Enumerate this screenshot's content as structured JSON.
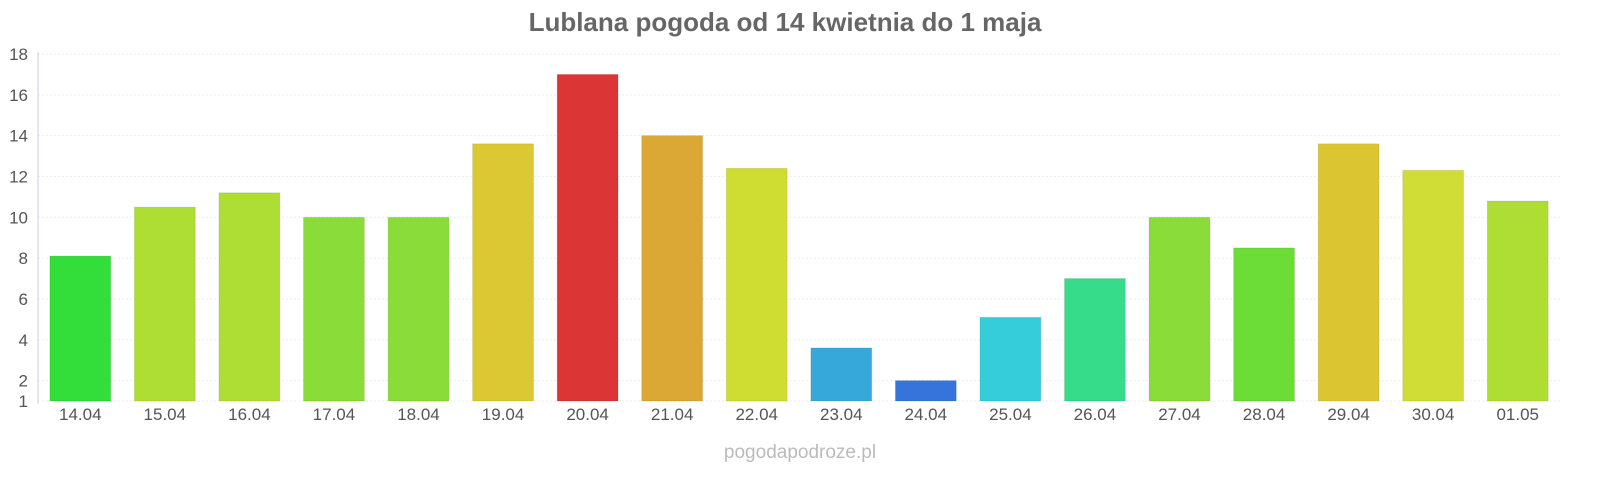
{
  "chart_data": {
    "type": "bar",
    "title": "Lublana pogoda od 14 kwietnia do 1 maja",
    "xlabel": "",
    "ylabel": "",
    "categories": [
      "14.04",
      "15.04",
      "16.04",
      "17.04",
      "18.04",
      "19.04",
      "20.04",
      "21.04",
      "22.04",
      "23.04",
      "24.04",
      "25.04",
      "26.04",
      "27.04",
      "28.04",
      "29.04",
      "30.04",
      "01.05"
    ],
    "values": [
      8.1,
      10.5,
      11.2,
      10.0,
      10.0,
      13.6,
      17.0,
      14.0,
      12.4,
      3.6,
      2.0,
      5.1,
      7.0,
      10.0,
      8.5,
      13.6,
      12.3,
      10.8
    ],
    "colors": [
      "#33dd3a",
      "#aedd34",
      "#aedd34",
      "#8add38",
      "#8add38",
      "#dbc832",
      "#dc3536",
      "#dca835",
      "#cfdd33",
      "#36a8da",
      "#3674dc",
      "#36cddb",
      "#36dc8a",
      "#8add38",
      "#6cdc36",
      "#dbc632",
      "#cfdd36",
      "#aedd34"
    ],
    "ylim": [
      1,
      18
    ],
    "yticks": [
      1,
      2,
      4,
      6,
      8,
      10,
      12,
      14,
      16,
      18
    ],
    "grid": true,
    "legend": "none"
  },
  "watermark": "pogodapodroze.pl"
}
